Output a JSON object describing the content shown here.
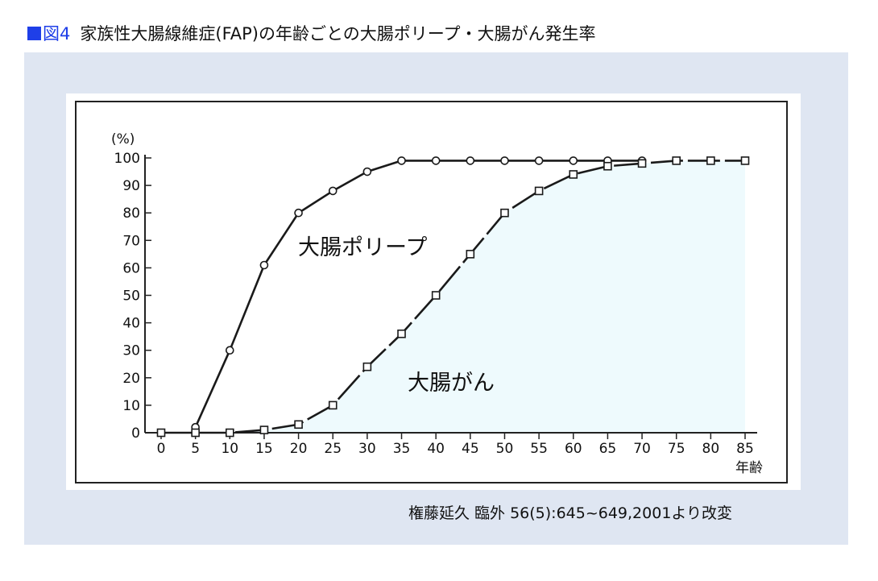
{
  "figure": {
    "number": "図4",
    "title": "家族性大腸線維症(FAP)の年齢ごとの大腸ポリープ・大腸がん発生率",
    "source": "権藤延久 臨外 56(5):645~649,2001より改変"
  },
  "chart_data": {
    "type": "line",
    "ylabel": "(%)",
    "xlabel": "年齢",
    "xlim": [
      0,
      85
    ],
    "ylim": [
      0,
      100
    ],
    "x_ticks": [
      "0",
      "5",
      "10",
      "15",
      "20",
      "25",
      "30",
      "35",
      "40",
      "45",
      "50",
      "55",
      "60",
      "65",
      "70",
      "75",
      "80",
      "85"
    ],
    "y_ticks": [
      "0",
      "10",
      "20",
      "30",
      "40",
      "50",
      "60",
      "70",
      "80",
      "90",
      "100"
    ],
    "grid": false,
    "series": [
      {
        "name": "大腸ポリープ",
        "marker": "circle",
        "x": [
          5,
          10,
          15,
          20,
          25,
          30,
          35,
          40,
          45,
          50,
          55,
          60,
          65,
          70
        ],
        "y": [
          2,
          30,
          61,
          80,
          88,
          95,
          99,
          99,
          99,
          99,
          99,
          99,
          99,
          99
        ]
      },
      {
        "name": "大腸がん",
        "marker": "square",
        "fill": "#eefafd",
        "x": [
          0,
          5,
          10,
          15,
          20,
          25,
          30,
          35,
          40,
          45,
          50,
          55,
          60,
          65,
          70,
          75,
          80,
          85
        ],
        "y": [
          0,
          0,
          0,
          1,
          3,
          10,
          24,
          36,
          50,
          65,
          80,
          88,
          94,
          97,
          98,
          99,
          99,
          99
        ]
      }
    ]
  }
}
